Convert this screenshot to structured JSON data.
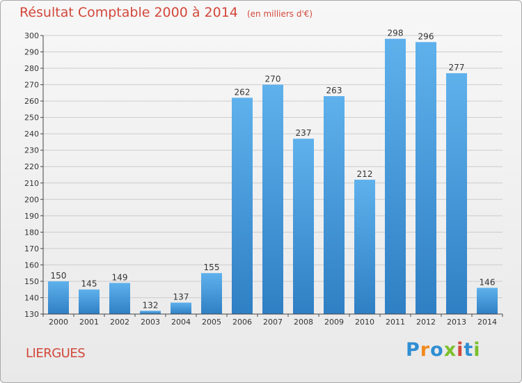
{
  "header": {
    "title": "Résultat Comptable 2000 à 2014",
    "unit": "(en milliers d'€)"
  },
  "footer": {
    "commune": "LIERGUES",
    "logo_text": "Proxiti",
    "logo_letters": [
      {
        "ch": "P",
        "color": "#2f8ed3"
      },
      {
        "ch": "r",
        "color": "#f08a1c"
      },
      {
        "ch": "o",
        "color": "#2f8ed3"
      },
      {
        "ch": "x",
        "color": "#7bbf2a"
      },
      {
        "ch": "i",
        "color": "#d2473a"
      },
      {
        "ch": "t",
        "color": "#2f8ed3"
      },
      {
        "ch": "i",
        "color": "#7bbf2a"
      }
    ]
  },
  "colors": {
    "title": "#d2473a",
    "bar_light": "#5fb1ec",
    "bar_dark": "#2f7fc4",
    "grid": "#cccccc",
    "axis": "#444444"
  },
  "chart_data": {
    "type": "bar",
    "title": "Résultat Comptable 2000 à 2014",
    "xlabel": "",
    "ylabel": "",
    "ylim": [
      130,
      300
    ],
    "ytick_step": 10,
    "grid": true,
    "categories": [
      "2000",
      "2001",
      "2002",
      "2003",
      "2004",
      "2005",
      "2006",
      "2007",
      "2008",
      "2009",
      "2010",
      "2011",
      "2012",
      "2013",
      "2014"
    ],
    "values": [
      150,
      145,
      149,
      132,
      137,
      155,
      262,
      270,
      237,
      263,
      212,
      298,
      296,
      277,
      146
    ]
  }
}
